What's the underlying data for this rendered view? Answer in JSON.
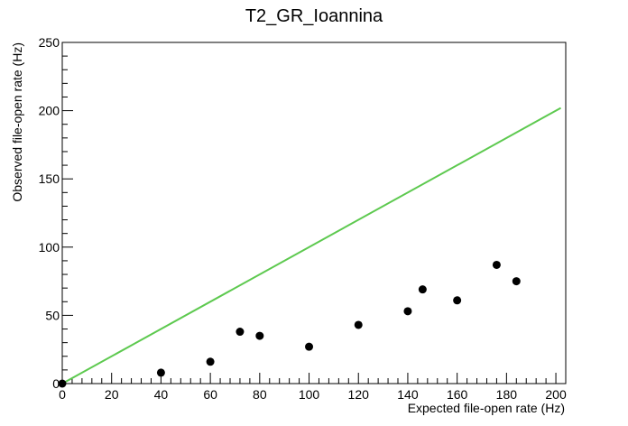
{
  "chart_data": {
    "type": "scatter",
    "title": "T2_GR_Ioannina",
    "xlabel": "Expected file-open rate (Hz)",
    "ylabel": "Observed file-open rate (Hz)",
    "xlim": [
      0,
      204
    ],
    "ylim": [
      0,
      250
    ],
    "x_ticks": [
      0,
      20,
      40,
      60,
      80,
      100,
      120,
      140,
      160,
      180,
      200
    ],
    "y_ticks": [
      0,
      50,
      100,
      150,
      200,
      250
    ],
    "grid": false,
    "legend": "none",
    "series": [
      {
        "kind": "points",
        "color": "#000000",
        "points": [
          [
            0,
            0
          ],
          [
            40,
            8
          ],
          [
            60,
            16
          ],
          [
            72,
            38
          ],
          [
            80,
            35
          ],
          [
            100,
            27
          ],
          [
            120,
            43
          ],
          [
            140,
            53
          ],
          [
            146,
            69
          ],
          [
            160,
            61
          ],
          [
            176,
            87
          ],
          [
            184,
            75
          ]
        ]
      },
      {
        "kind": "reference-line",
        "color": "#5dc94f",
        "points": [
          [
            0,
            0
          ],
          [
            202,
            202
          ]
        ]
      }
    ]
  }
}
